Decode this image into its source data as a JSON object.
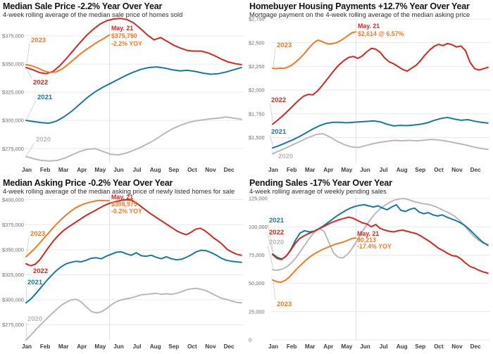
{
  "colors": {
    "y2020": "#b9b9b9",
    "y2021": "#177a9d",
    "y2022": "#d2281e",
    "y2023": "#f37a26",
    "grid": "#e9e9e9",
    "may_line": "#e0e0e0",
    "leader": "#cccccc",
    "y_label": "#6e6e6e",
    "month_label": "#3c3c3c",
    "title": "#141414",
    "subtitle": "#2e2e2e"
  },
  "months": [
    "Jan",
    "Feb",
    "Mar",
    "Apr",
    "May",
    "Jun",
    "Jul",
    "Aug",
    "Sep",
    "Oct",
    "Nov",
    "Dec"
  ],
  "chart_data": [
    {
      "type": "line",
      "title": "Median Sale Price -2.2% Year Over Year",
      "subtitle": "4-week rolling average of the median sale price of homes sold",
      "ylim": [
        262000,
        390000
      ],
      "y_axis": [
        {
          "text": "$375,000",
          "value": 375000
        },
        {
          "text": "$350,000",
          "value": 350000
        },
        {
          "text": "$325,000",
          "value": 325000
        },
        {
          "text": "$300,000",
          "value": 300000
        },
        {
          "text": "$275,000",
          "value": 275000
        }
      ],
      "annotation": {
        "x": 158,
        "ys": [
          43,
          54,
          65
        ],
        "lines": [
          {
            "text": "May. 21",
            "color": "y2022"
          },
          {
            "text": "$375,750",
            "color": "y2023"
          },
          {
            "text": "-2.2% YOY",
            "color": "y2023"
          }
        ]
      },
      "series": [
        {
          "name": "2020",
          "color": "y2020",
          "months_end": 11.9,
          "label": {
            "x": 51,
            "y": 201
          },
          "values": [
            268000,
            266000,
            264500,
            264000,
            264500,
            266500,
            269500,
            272500,
            274500,
            275000,
            272500,
            270000,
            269500,
            271000,
            273500,
            276500,
            280000,
            284000,
            288500,
            292500,
            295500,
            298000,
            299500,
            300500,
            301500,
            302000,
            303000,
            302000,
            301000
          ]
        },
        {
          "name": "2021",
          "color": "y2021",
          "months_end": 11.9,
          "label": {
            "x": 53,
            "y": 141
          },
          "values": [
            300000,
            299000,
            298000,
            297500,
            299500,
            303500,
            308500,
            314500,
            320500,
            325500,
            329500,
            333000,
            336500,
            340000,
            343000,
            345500,
            347000,
            347500,
            346500,
            345000,
            344000,
            344500,
            343500,
            342000,
            341000,
            341500,
            343000,
            345000,
            347000
          ]
        },
        {
          "name": "2022",
          "color": "y2022",
          "months_end": 11.9,
          "label": {
            "x": 47,
            "y": 120
          },
          "values": [
            347000,
            345000,
            342500,
            341500,
            343500,
            348500,
            355000,
            362000,
            369000,
            375500,
            381000,
            385500,
            388500,
            390000,
            390500,
            389500,
            386500,
            381500,
            376000,
            371500,
            373500,
            370000,
            366500,
            364000,
            362000,
            361500,
            361500,
            360000,
            357500,
            354500,
            352000,
            350500,
            349500
          ]
        },
        {
          "name": "2023",
          "color": "y2023",
          "months_end": 4.6,
          "label": {
            "x": 44,
            "y": 60
          },
          "values": [
            349500,
            348500,
            346500,
            344000,
            342500,
            343000,
            345500,
            349500,
            354000,
            358500,
            362500,
            366000,
            369500,
            372500,
            375750
          ]
        }
      ]
    },
    {
      "type": "line",
      "title": "Homebuyer Housing Payments +12.7% Year Over Year",
      "subtitle": "Mortgage payment on the 4-week rolling average of the median asking price",
      "ylim": [
        1228,
        2750
      ],
      "y_axis": [
        {
          "text": "$2,750",
          "value": 2750
        },
        {
          "text": "$2,500",
          "value": 2500
        },
        {
          "text": "$2,250",
          "value": 2250
        },
        {
          "text": "$2,000",
          "value": 2000
        },
        {
          "text": "$1,750",
          "value": 1750
        },
        {
          "text": "$1,500",
          "value": 1500
        }
      ],
      "annotation": {
        "x": 158,
        "ys": [
          40,
          51
        ],
        "lines": [
          {
            "text": "May. 21",
            "color": "y2022"
          },
          {
            "text": "$2,614 @ 6.57%",
            "color": "y2023"
          }
        ]
      },
      "series": [
        {
          "name": "2020",
          "color": "y2020",
          "months_end": 11.9,
          "label": {
            "x": 45,
            "y": 225
          },
          "values": [
            1330,
            1360,
            1395,
            1430,
            1465,
            1500,
            1530,
            1540,
            1505,
            1460,
            1425,
            1400,
            1395,
            1415,
            1435,
            1450,
            1460,
            1470,
            1465,
            1470,
            1465,
            1470,
            1480,
            1475,
            1465,
            1450,
            1435,
            1420,
            1400,
            1385,
            1375
          ]
        },
        {
          "name": "2021",
          "color": "y2021",
          "months_end": 11.9,
          "label": {
            "x": 35,
            "y": 190
          },
          "values": [
            1390,
            1415,
            1445,
            1475,
            1510,
            1550,
            1590,
            1625,
            1650,
            1660,
            1660,
            1655,
            1660,
            1665,
            1670,
            1675,
            1665,
            1640,
            1622,
            1628,
            1625,
            1632,
            1640,
            1655,
            1680,
            1700,
            1712,
            1695,
            1682,
            1688,
            1672,
            1660,
            1652
          ]
        },
        {
          "name": "2022",
          "color": "y2022",
          "months_end": 11.9,
          "label": {
            "x": 35,
            "y": 145
          },
          "values": [
            1640,
            1678,
            1718,
            1762,
            1808,
            1855,
            1900,
            1938,
            1955,
            1950,
            1990,
            2045,
            2105,
            2165,
            2225,
            2275,
            2315,
            2345,
            2355,
            2335,
            2360,
            2405,
            2440,
            2432,
            2398,
            2338,
            2298,
            2278,
            2248,
            2218,
            2200,
            2232,
            2262,
            2312,
            2372,
            2422,
            2462,
            2482,
            2470,
            2492,
            2478,
            2455,
            2465,
            2415,
            2295,
            2228,
            2212,
            2225,
            2240
          ]
        },
        {
          "name": "2023",
          "color": "y2023",
          "months_end": 4.6,
          "label": {
            "x": 43,
            "y": 67
          },
          "values": [
            2230,
            2226,
            2232,
            2228,
            2242,
            2262,
            2292,
            2328,
            2368,
            2415,
            2462,
            2502,
            2528,
            2515,
            2495,
            2486,
            2492,
            2502,
            2522,
            2548,
            2578,
            2605,
            2614
          ]
        }
      ]
    },
    {
      "type": "line",
      "title": "Median Asking Price -0.2% Year Over Year",
      "subtitle": "4-week rolling average of the median asking price of newly listed homes for sale",
      "ylim": [
        260000,
        404000
      ],
      "y_axis": [
        {
          "text": "$400,000",
          "value": 400000
        },
        {
          "text": "$375,000",
          "value": 375000
        },
        {
          "text": "$350,000",
          "value": 350000
        },
        {
          "text": "$325,000",
          "value": 325000
        },
        {
          "text": "$300,000",
          "value": 300000
        },
        {
          "text": "$275,000",
          "value": 275000
        }
      ],
      "annotation": {
        "x": 158,
        "ys": [
          32,
          42,
          52
        ],
        "lines": [
          {
            "text": "May. 21",
            "color": "y2022"
          },
          {
            "text": "$398,975",
            "color": "y2023"
          },
          {
            "text": "-0.2% YOY",
            "color": "y2023"
          }
        ]
      },
      "series": [
        {
          "name": "2020",
          "color": "y2020",
          "months_end": 11.9,
          "label": {
            "x": 39,
            "y": 205
          },
          "values": [
            260000,
            265000,
            270500,
            275500,
            280500,
            285500,
            290000,
            294500,
            297500,
            300000,
            300500,
            298000,
            293000,
            288500,
            287000,
            288000,
            291000,
            295000,
            298000,
            300000,
            301000,
            302000,
            303500,
            305000,
            305500,
            306000,
            306500,
            305500,
            306000,
            305500,
            306500,
            308000,
            310000,
            311000,
            311500,
            310500,
            309000,
            306500,
            304000,
            301500,
            300500,
            299000,
            297500,
            297000
          ]
        },
        {
          "name": "2021",
          "color": "y2021",
          "months_end": 11.9,
          "label": {
            "x": 39,
            "y": 153
          },
          "values": [
            297000,
            301000,
            306500,
            312500,
            318500,
            324000,
            329000,
            333000,
            336000,
            337500,
            338500,
            338000,
            339500,
            341500,
            342000,
            341000,
            343500,
            345500,
            347500,
            348000,
            346000,
            344500,
            347000,
            344000,
            343500,
            344500,
            342500,
            341000,
            343000,
            341000,
            340000,
            340500,
            342500,
            345000,
            348000,
            349500,
            349000,
            347000,
            344500,
            341500,
            339500,
            338500,
            338000,
            337500
          ]
        },
        {
          "name": "2022",
          "color": "y2022",
          "months_end": 11.9,
          "label": {
            "x": 47,
            "y": 137
          },
          "values": [
            336000,
            334000,
            335500,
            340000,
            346500,
            353000,
            359000,
            364000,
            368500,
            372000,
            375000,
            378000,
            381000,
            384000,
            386500,
            389000,
            391500,
            394000,
            396000,
            397500,
            398500,
            399500,
            400000,
            399500,
            397000,
            393500,
            390000,
            386500,
            383500,
            380500,
            377500,
            374500,
            371500,
            368500,
            366500,
            365000,
            367500,
            370500,
            371500,
            369000,
            365500,
            361500,
            358500,
            354500,
            350000,
            347500,
            345500,
            344500
          ]
        },
        {
          "name": "2023",
          "color": "y2023",
          "months_end": 4.6,
          "label": {
            "x": 43,
            "y": 84
          },
          "values": [
            343000,
            347500,
            352500,
            358000,
            363500,
            369000,
            374500,
            379500,
            384000,
            388000,
            391500,
            394000,
            396000,
            397500,
            398500,
            399200,
            399000,
            398975
          ]
        }
      ]
    },
    {
      "type": "line",
      "title": "Pending Sales -17% Year Over Year",
      "subtitle": "4-week rolling average of weekly pending sales",
      "ylim": [
        0,
        127500
      ],
      "y_axis": [
        {
          "text": "125,000",
          "value": 125000
        },
        {
          "text": "100,000",
          "value": 100000
        },
        {
          "text": "75,000",
          "value": 75000
        },
        {
          "text": "50,000",
          "value": 50000
        },
        {
          "text": "25,000",
          "value": 25000
        },
        {
          "text": "0",
          "value": 0
        }
      ],
      "annotation": {
        "x": 157,
        "ys": [
          84,
          93,
          102
        ],
        "lines": [
          {
            "text": "May. 21",
            "color": "y2022"
          },
          {
            "text": "90,213",
            "color": "y2023"
          },
          {
            "text": "-17.4% YOY",
            "color": "y2023"
          }
        ]
      },
      "series": [
        {
          "name": "2020",
          "color": "y2020",
          "months_end": 11.9,
          "label": {
            "x": 32,
            "y": 96
          },
          "values": [
            62000,
            61500,
            62500,
            64500,
            68000,
            72500,
            78500,
            84500,
            90500,
            95500,
            98500,
            96000,
            86500,
            77000,
            73000,
            72500,
            75500,
            81000,
            87500,
            94500,
            101000,
            107000,
            112000,
            116000,
            119000,
            121500,
            123500,
            124500,
            125000,
            124000,
            122500,
            121500,
            120500,
            120000,
            119000,
            117500,
            115500,
            113500,
            111500,
            109000,
            105500,
            101000,
            96000,
            91500,
            88000,
            85500,
            84500
          ]
        },
        {
          "name": "2021",
          "color": "y2021",
          "months_end": 11.9,
          "label": {
            "x": 32,
            "y": 65
          },
          "values": [
            76000,
            73000,
            71500,
            74000,
            80000,
            88000,
            94500,
            96500,
            95500,
            96000,
            98000,
            100500,
            103500,
            106500,
            109500,
            112000,
            114500,
            116500,
            118000,
            119000,
            119500,
            118500,
            117500,
            118500,
            116500,
            115000,
            117500,
            119500,
            114500,
            113500,
            115500,
            116500,
            113000,
            111500,
            112500,
            110500,
            109500,
            110500,
            108500,
            107000,
            105500,
            103500,
            101000,
            97500,
            93500,
            89500,
            86000,
            83500
          ]
        },
        {
          "name": "2022",
          "color": "y2022",
          "months_end": 11.9,
          "label": {
            "x": 32,
            "y": 82
          },
          "values": [
            75500,
            72000,
            71000,
            74000,
            79000,
            85000,
            89500,
            92000,
            94000,
            95500,
            97500,
            99500,
            101500,
            103500,
            105000,
            106500,
            107500,
            108500,
            107500,
            105500,
            103500,
            102500,
            100000,
            102000,
            98500,
            97000,
            96000,
            95500,
            96500,
            97000,
            96000,
            95000,
            94000,
            92000,
            89500,
            87000,
            84000,
            81000,
            79000,
            76500,
            74500,
            74000,
            71500,
            68000,
            65000,
            63500,
            61500,
            60000,
            59000
          ]
        },
        {
          "name": "2023",
          "color": "y2023",
          "months_end": 4.6,
          "label": {
            "x": 43,
            "y": 184
          },
          "values": [
            53000,
            51500,
            51000,
            52500,
            55500,
            59500,
            63500,
            67000,
            70500,
            73500,
            76000,
            78000,
            80000,
            81500,
            83000,
            84500,
            85500,
            86500,
            88000,
            89500,
            90213
          ]
        }
      ]
    }
  ]
}
